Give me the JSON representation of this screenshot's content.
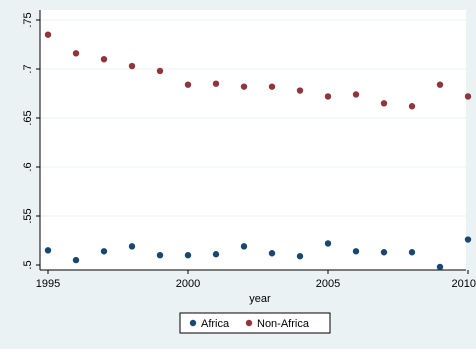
{
  "chart_data": {
    "type": "scatter",
    "title": "",
    "xlabel": "year",
    "ylabel": "",
    "xlim": [
      1995,
      2010
    ],
    "ylim": [
      0.5,
      0.75
    ],
    "x_ticks": [
      {
        "value": 1995,
        "label": "1995"
      },
      {
        "value": 2000,
        "label": "2000"
      },
      {
        "value": 2005,
        "label": "2005"
      },
      {
        "value": 2010,
        "label": "2010"
      }
    ],
    "y_ticks": [
      {
        "value": 0.5,
        "label": ".5"
      },
      {
        "value": 0.55,
        "label": ".55"
      },
      {
        "value": 0.6,
        "label": ".6"
      },
      {
        "value": 0.65,
        "label": ".65"
      },
      {
        "value": 0.7,
        "label": ".7"
      },
      {
        "value": 0.75,
        "label": ".75"
      }
    ],
    "grid": true,
    "legend_position": "bottom",
    "series": [
      {
        "name": "Africa",
        "color": "#1a476f",
        "x": [
          1995,
          1996,
          1997,
          1998,
          1999,
          2000,
          2001,
          2002,
          2003,
          2004,
          2005,
          2006,
          2007,
          2008,
          2009,
          2010
        ],
        "y": [
          0.515,
          0.505,
          0.514,
          0.519,
          0.51,
          0.51,
          0.511,
          0.519,
          0.512,
          0.509,
          0.522,
          0.514,
          0.513,
          0.513,
          0.498,
          0.526
        ]
      },
      {
        "name": "Non-Africa",
        "color": "#90353b",
        "x": [
          1995,
          1996,
          1997,
          1998,
          1999,
          2000,
          2001,
          2002,
          2003,
          2004,
          2005,
          2006,
          2007,
          2008,
          2009,
          2010
        ],
        "y": [
          0.735,
          0.716,
          0.71,
          0.703,
          0.698,
          0.684,
          0.685,
          0.682,
          0.682,
          0.678,
          0.672,
          0.674,
          0.665,
          0.662,
          0.684,
          0.672
        ]
      }
    ]
  },
  "colors": {
    "outer_background": "#eaf2f3",
    "plot_background": "#ffffff",
    "grid": "#eaf2f3"
  }
}
